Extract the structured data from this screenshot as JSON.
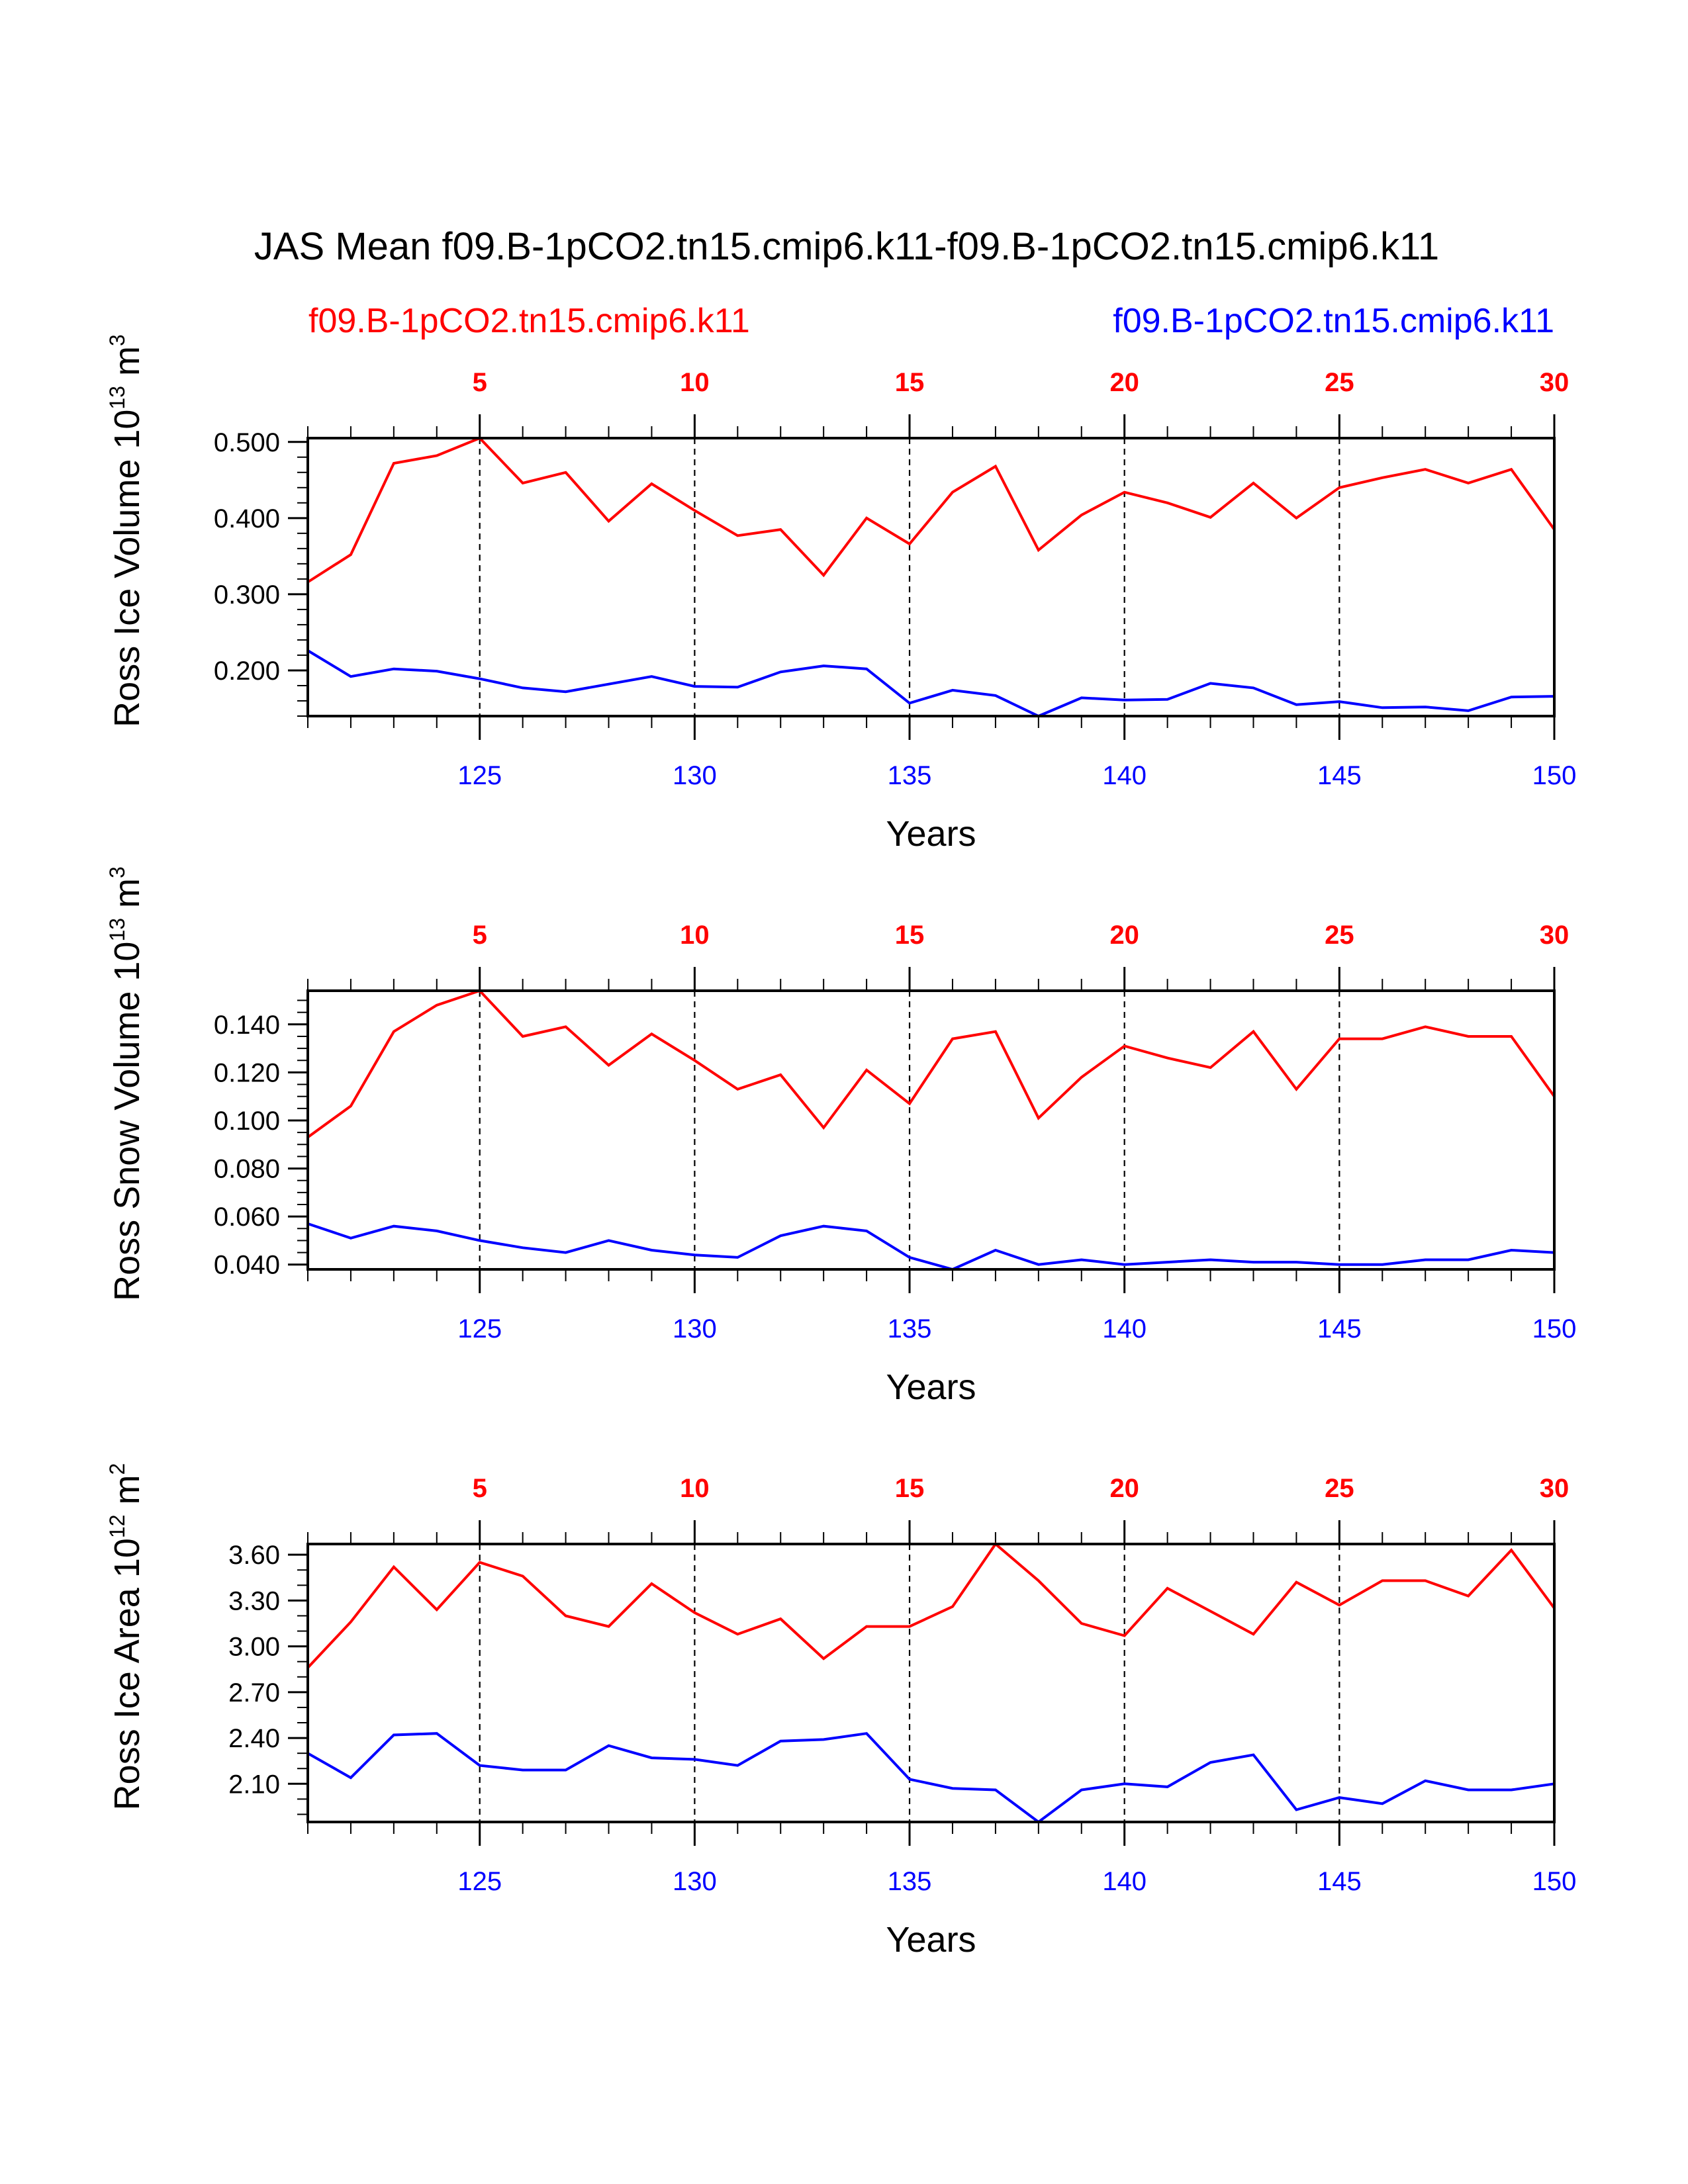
{
  "title": "JAS Mean f09.B-1pCO2.tn15.cmip6.k11-f09.B-1pCO2.tn15.cmip6.k11",
  "legend": {
    "case1": "f09.B-1pCO2.tn15.cmip6.k11",
    "case2": "f09.B-1pCO2.tn15.cmip6.k11"
  },
  "colors": {
    "case1": "#ff0000",
    "case2": "#0000ff",
    "axis": "#000000"
  },
  "chart_data": [
    {
      "type": "line",
      "ylabel_main": "Ross Ice Volume 10",
      "ylabel_exp": "13",
      "ylabel_unit": " m",
      "ylabel_unit_exp": "3",
      "xlabel": "Years",
      "xlim_bottom": [
        121,
        150
      ],
      "xlim_top": [
        1,
        30
      ],
      "ylim": [
        0.14,
        0.505
      ],
      "yticks": [
        0.2,
        0.3,
        0.4,
        0.5
      ],
      "ytick_labels": [
        "0.200",
        "0.300",
        "0.400",
        "0.500"
      ],
      "yminor_step": 0.02,
      "top_ticks": [
        5,
        10,
        15,
        20,
        25,
        30
      ],
      "bottom_ticks": [
        125,
        130,
        135,
        140,
        145,
        150
      ],
      "series": [
        {
          "name": "f09.B-1pCO2.tn15.cmip6.k11",
          "color": "#ff0000",
          "values": [
            0.316,
            0.352,
            0.472,
            0.482,
            0.505,
            0.446,
            0.46,
            0.396,
            0.445,
            0.41,
            0.377,
            0.385,
            0.325,
            0.4,
            0.366,
            0.434,
            0.468,
            0.358,
            0.404,
            0.434,
            0.42,
            0.401,
            0.446,
            0.4,
            0.44,
            0.453,
            0.464,
            0.446,
            0.464,
            0.385
          ]
        },
        {
          "name": "f09.B-1pCO2.tn15.cmip6.k11",
          "color": "#0000ff",
          "values": [
            0.226,
            0.192,
            0.202,
            0.199,
            0.189,
            0.177,
            0.172,
            0.182,
            0.192,
            0.179,
            0.178,
            0.198,
            0.206,
            0.202,
            0.157,
            0.174,
            0.167,
            0.14,
            0.164,
            0.161,
            0.162,
            0.183,
            0.177,
            0.155,
            0.159,
            0.151,
            0.152,
            0.147,
            0.165,
            0.166
          ]
        }
      ]
    },
    {
      "type": "line",
      "ylabel_main": "Ross Snow Volume 10",
      "ylabel_exp": "13",
      "ylabel_unit": " m",
      "ylabel_unit_exp": "3",
      "xlabel": "Years",
      "xlim_bottom": [
        121,
        150
      ],
      "xlim_top": [
        1,
        30
      ],
      "ylim": [
        0.038,
        0.154
      ],
      "yticks": [
        0.04,
        0.06,
        0.08,
        0.1,
        0.12,
        0.14
      ],
      "ytick_labels": [
        "0.040",
        "0.060",
        "0.080",
        "0.100",
        "0.120",
        "0.140"
      ],
      "yminor_step": 0.005,
      "top_ticks": [
        5,
        10,
        15,
        20,
        25,
        30
      ],
      "bottom_ticks": [
        125,
        130,
        135,
        140,
        145,
        150
      ],
      "series": [
        {
          "name": "f09.B-1pCO2.tn15.cmip6.k11",
          "color": "#ff0000",
          "values": [
            0.093,
            0.106,
            0.137,
            0.148,
            0.154,
            0.135,
            0.139,
            0.123,
            0.136,
            0.125,
            0.113,
            0.119,
            0.097,
            0.121,
            0.107,
            0.134,
            0.137,
            0.101,
            0.118,
            0.131,
            0.126,
            0.122,
            0.137,
            0.113,
            0.134,
            0.134,
            0.139,
            0.135,
            0.135,
            0.11
          ]
        },
        {
          "name": "f09.B-1pCO2.tn15.cmip6.k11",
          "color": "#0000ff",
          "values": [
            0.057,
            0.051,
            0.056,
            0.054,
            0.05,
            0.047,
            0.045,
            0.05,
            0.046,
            0.044,
            0.043,
            0.052,
            0.056,
            0.054,
            0.043,
            0.038,
            0.046,
            0.04,
            0.042,
            0.04,
            0.041,
            0.042,
            0.041,
            0.041,
            0.04,
            0.04,
            0.042,
            0.042,
            0.046,
            0.045
          ]
        }
      ]
    },
    {
      "type": "line",
      "ylabel_main": "Ross Ice Area 10",
      "ylabel_exp": "12",
      "ylabel_unit": " m",
      "ylabel_unit_exp": "2",
      "xlabel": "Years",
      "xlim_bottom": [
        121,
        150
      ],
      "xlim_top": [
        1,
        30
      ],
      "ylim": [
        1.85,
        3.67
      ],
      "yticks": [
        2.1,
        2.4,
        2.7,
        3.0,
        3.3,
        3.6
      ],
      "ytick_labels": [
        "2.10",
        "2.40",
        "2.70",
        "3.00",
        "3.30",
        "3.60"
      ],
      "yminor_step": 0.1,
      "top_ticks": [
        5,
        10,
        15,
        20,
        25,
        30
      ],
      "bottom_ticks": [
        125,
        130,
        135,
        140,
        145,
        150
      ],
      "series": [
        {
          "name": "f09.B-1pCO2.tn15.cmip6.k11",
          "color": "#ff0000",
          "values": [
            2.86,
            3.16,
            3.52,
            3.24,
            3.55,
            3.46,
            3.2,
            3.13,
            3.41,
            3.22,
            3.08,
            3.18,
            2.92,
            3.13,
            3.13,
            3.26,
            3.67,
            3.43,
            3.15,
            3.07,
            3.38,
            3.23,
            3.08,
            3.42,
            3.27,
            3.43,
            3.43,
            3.33,
            3.63,
            3.25
          ]
        },
        {
          "name": "f09.B-1pCO2.tn15.cmip6.k11",
          "color": "#0000ff",
          "values": [
            2.3,
            2.14,
            2.42,
            2.43,
            2.22,
            2.19,
            2.19,
            2.35,
            2.27,
            2.26,
            2.22,
            2.38,
            2.39,
            2.43,
            2.13,
            2.07,
            2.06,
            1.85,
            2.06,
            2.1,
            2.08,
            2.24,
            2.29,
            1.93,
            2.01,
            1.97,
            2.12,
            2.06,
            2.06,
            2.1
          ]
        }
      ]
    }
  ]
}
